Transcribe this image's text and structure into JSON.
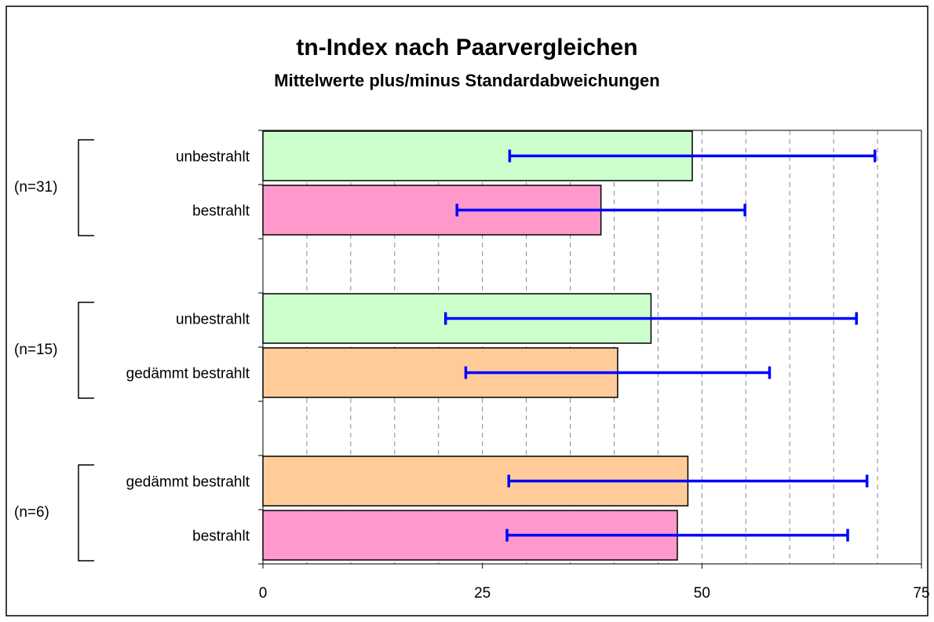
{
  "chart_data": {
    "type": "bar",
    "orientation": "horizontal",
    "title": "tn-Index nach Paarvergleichen",
    "subtitle": "Mittelwerte plus/minus Standardabweichungen",
    "categories": [
      "unbestrahlt",
      "bestrahlt",
      null,
      "unbestrahlt",
      "gedämmt bestrahlt",
      null,
      "gedämmt bestrahlt",
      "bestrahlt"
    ],
    "values": [
      48.9,
      38.5,
      null,
      44.2,
      40.4,
      null,
      48.4,
      47.2
    ],
    "errors": [
      20.8,
      16.4,
      null,
      23.4,
      17.3,
      null,
      20.4,
      19.4
    ],
    "colors": [
      "#ccffcc",
      "#ff99cc",
      null,
      "#ccffcc",
      "#ffcc99",
      null,
      "#ffcc99",
      "#ff99cc"
    ],
    "error_color": "#0000ff",
    "groups": [
      "(n=31)",
      "(n=15)",
      "(n=6)"
    ],
    "xlim": [
      0,
      75
    ],
    "xticks": [
      0,
      25,
      50,
      75
    ],
    "xgrid": [
      5,
      10,
      15,
      20,
      25,
      30,
      35,
      40,
      45,
      50,
      55,
      60,
      65,
      70
    ],
    "grid": true
  }
}
